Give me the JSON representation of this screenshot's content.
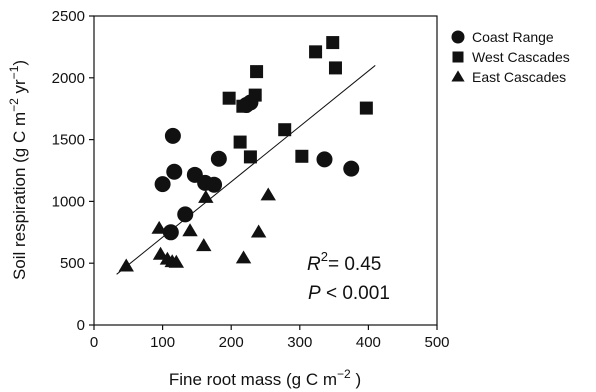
{
  "chart_data": {
    "type": "scatter",
    "title": "",
    "xlabel": "Fine root mass (g C m",
    "xlabel_sup": "−2",
    "xlabel_tail": " )",
    "ylabel": "Soil respiration (g C m",
    "ylabel_sup1": "−2",
    "ylabel_mid": " yr",
    "ylabel_sup2": "−1",
    "ylabel_tail": ")",
    "xlim": [
      0,
      500
    ],
    "ylim": [
      0,
      2500
    ],
    "xticks": [
      0,
      100,
      200,
      300,
      400,
      500
    ],
    "yticks": [
      0,
      500,
      1000,
      1500,
      2000,
      2500
    ],
    "grid": false,
    "legend_position": "outside-right-top",
    "series": [
      {
        "name": "Coast Range",
        "marker": "circle",
        "color": "#111111",
        "points": [
          {
            "x": 115,
            "y": 1530
          },
          {
            "x": 100,
            "y": 1140
          },
          {
            "x": 117,
            "y": 1240
          },
          {
            "x": 112,
            "y": 750
          },
          {
            "x": 133,
            "y": 895
          },
          {
            "x": 147,
            "y": 1215
          },
          {
            "x": 162,
            "y": 1150
          },
          {
            "x": 175,
            "y": 1135
          },
          {
            "x": 182,
            "y": 1345
          },
          {
            "x": 222,
            "y": 1780
          },
          {
            "x": 228,
            "y": 1800
          },
          {
            "x": 336,
            "y": 1340
          },
          {
            "x": 375,
            "y": 1265
          }
        ]
      },
      {
        "name": "West Cascades",
        "marker": "square",
        "color": "#111111",
        "points": [
          {
            "x": 197,
            "y": 1835
          },
          {
            "x": 213,
            "y": 1480
          },
          {
            "x": 217,
            "y": 1770
          },
          {
            "x": 228,
            "y": 1360
          },
          {
            "x": 235,
            "y": 1860
          },
          {
            "x": 237,
            "y": 2050
          },
          {
            "x": 278,
            "y": 1580
          },
          {
            "x": 303,
            "y": 1365
          },
          {
            "x": 323,
            "y": 2210
          },
          {
            "x": 348,
            "y": 2285
          },
          {
            "x": 352,
            "y": 2080
          },
          {
            "x": 397,
            "y": 1755
          }
        ]
      },
      {
        "name": "East Cascades",
        "marker": "triangle",
        "color": "#111111",
        "points": [
          {
            "x": 47,
            "y": 475
          },
          {
            "x": 95,
            "y": 780
          },
          {
            "x": 97,
            "y": 570
          },
          {
            "x": 107,
            "y": 530
          },
          {
            "x": 114,
            "y": 510
          },
          {
            "x": 120,
            "y": 505
          },
          {
            "x": 140,
            "y": 760
          },
          {
            "x": 160,
            "y": 640
          },
          {
            "x": 163,
            "y": 1030
          },
          {
            "x": 218,
            "y": 540
          },
          {
            "x": 240,
            "y": 750
          },
          {
            "x": 254,
            "y": 1050
          }
        ]
      }
    ],
    "fit_line": {
      "x": [
        33,
        410
      ],
      "y": [
        410,
        2100
      ]
    },
    "annotations": {
      "r2_symbol": "R",
      "r2_sup": "2",
      "r2_value": "= 0.45",
      "p_symbol": "P",
      "p_value": " < 0.001"
    }
  }
}
